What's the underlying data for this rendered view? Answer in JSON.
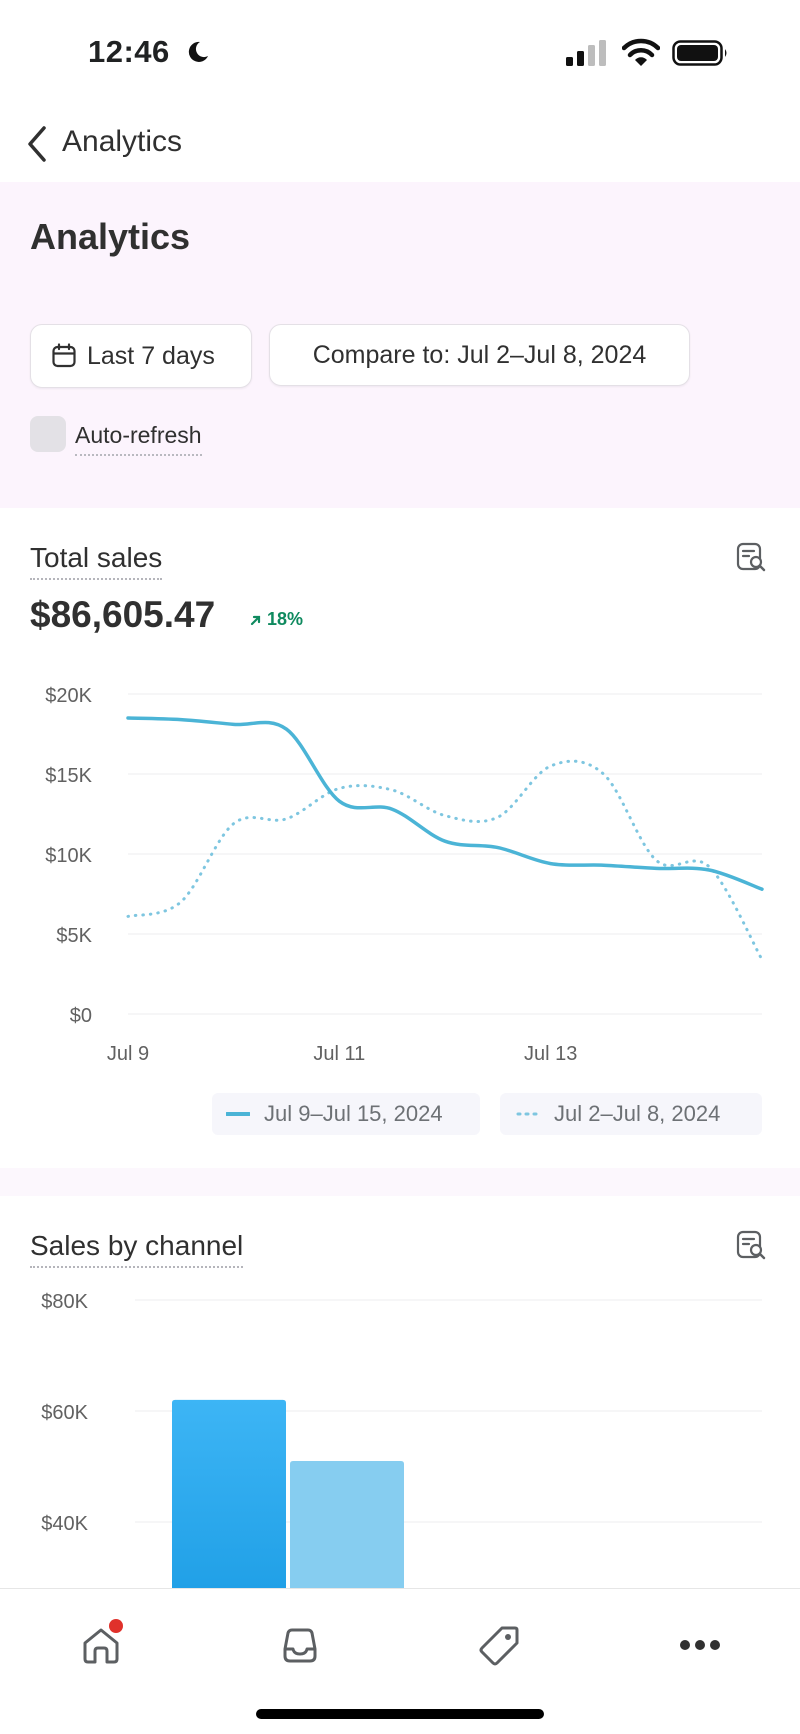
{
  "status": {
    "time": "12:46"
  },
  "nav": {
    "title": "Analytics"
  },
  "header": {
    "title": "Analytics",
    "date_range_label": "Last 7 days",
    "compare_label": "Compare to: Jul 2–Jul 8, 2024",
    "auto_refresh_label": "Auto-refresh",
    "auto_refresh_checked": false
  },
  "total_sales": {
    "title": "Total sales",
    "value": "$86,605.47",
    "change": "18%",
    "change_direction": "up",
    "legend": {
      "current": "Jul 9–Jul 15, 2024",
      "previous": "Jul 2–Jul 8, 2024"
    }
  },
  "sales_by_channel": {
    "title": "Sales by channel"
  },
  "colors": {
    "accent_line": "#4bb4d6",
    "bar_primary": "#2aa8f1",
    "bar_secondary": "#86cdf0",
    "positive": "#0f8a5f",
    "header_bg": "#fcf4fd"
  },
  "tabs": [
    {
      "name": "home",
      "icon": "home-icon",
      "has_notification": true
    },
    {
      "name": "orders",
      "icon": "inbox-icon"
    },
    {
      "name": "products",
      "icon": "tag-icon"
    },
    {
      "name": "more",
      "icon": "more-icon"
    }
  ],
  "chart_data": [
    {
      "type": "line",
      "title": "Total sales",
      "x_tick_labels": [
        "Jul 9",
        "Jul 11",
        "Jul 13"
      ],
      "y_tick_labels": [
        "$20K",
        "$15K",
        "$10K",
        "$5K",
        "$0"
      ],
      "ylim": [
        0,
        20000
      ],
      "grid": true,
      "legend_position": "bottom",
      "series": [
        {
          "name": "Jul 9–Jul 15, 2024",
          "style": "solid",
          "x": [
            0,
            0.5,
            1,
            1.5,
            2,
            2.5,
            3,
            3.5,
            4,
            4.5,
            5,
            5.5,
            6
          ],
          "y": [
            18500,
            18400,
            18100,
            17800,
            13300,
            12800,
            10800,
            10400,
            9400,
            9300,
            9100,
            9000,
            7800
          ]
        },
        {
          "name": "Jul 2–Jul 8, 2024",
          "style": "dotted",
          "x": [
            0,
            0.5,
            1,
            1.5,
            2,
            2.5,
            3,
            3.5,
            4,
            4.5,
            5,
            5.5,
            6
          ],
          "y": [
            6100,
            7000,
            11900,
            12200,
            14100,
            14000,
            12400,
            12300,
            15500,
            15000,
            9600,
            9200,
            3400
          ]
        }
      ]
    },
    {
      "type": "bar",
      "title": "Sales by channel",
      "y_tick_labels": [
        "$80K",
        "$60K",
        "$40K"
      ],
      "ylim": [
        40000,
        80000
      ],
      "grid": true,
      "series": [
        {
          "values": [
            62000
          ]
        },
        {
          "values": [
            51000
          ]
        }
      ]
    }
  ]
}
